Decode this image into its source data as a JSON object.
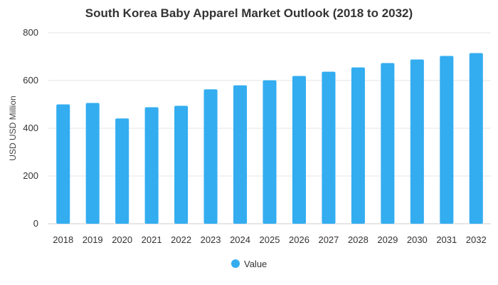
{
  "chart_data": {
    "type": "bar",
    "title": "South Korea Baby Apparel Market Outlook (2018 to 2032)",
    "ylabel": "USD USD Million",
    "xlabel": "",
    "categories": [
      "2018",
      "2019",
      "2020",
      "2021",
      "2022",
      "2023",
      "2024",
      "2025",
      "2026",
      "2027",
      "2028",
      "2029",
      "2030",
      "2031",
      "2032"
    ],
    "series": [
      {
        "name": "Value",
        "values": [
          500,
          506,
          441,
          488,
          494,
          563,
          580,
          601,
          619,
          637,
          655,
          673,
          688,
          703,
          715
        ],
        "color": "#33adf0"
      }
    ],
    "ylim": [
      0,
      800
    ],
    "yticks": [
      0,
      200,
      400,
      600,
      800
    ],
    "grid": true,
    "legend_position": "bottom-center"
  }
}
